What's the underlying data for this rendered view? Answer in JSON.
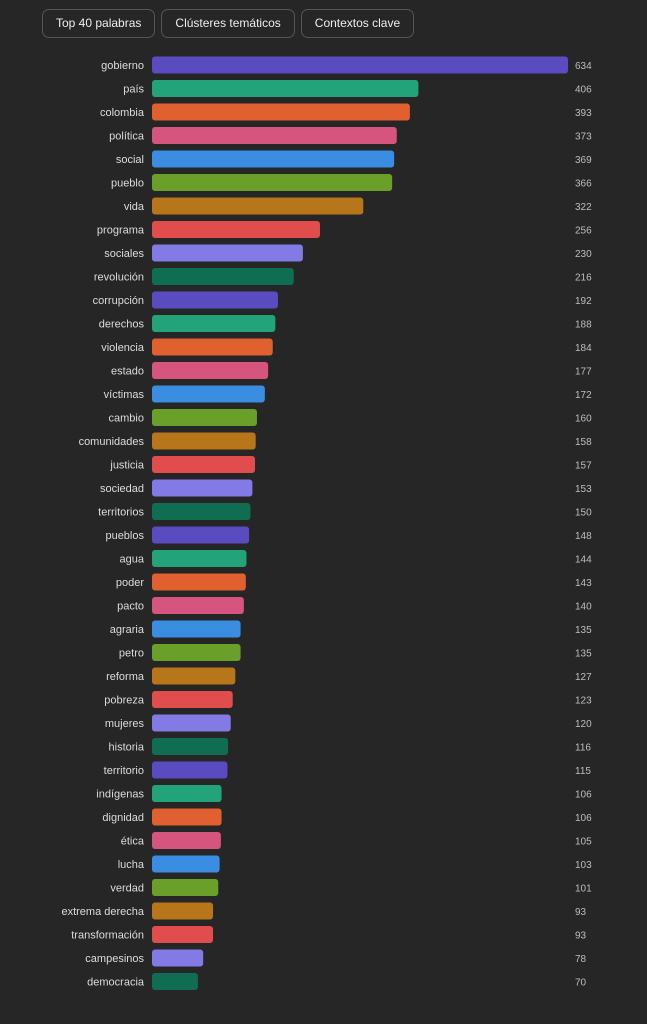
{
  "tabs": [
    "Top 40 palabras",
    "Clústeres temáticos",
    "Contextos clave"
  ],
  "chart_data": {
    "type": "bar",
    "orientation": "horizontal",
    "title": "",
    "xlabel": "",
    "ylabel": "",
    "xlim": [
      0,
      634
    ],
    "categories": [
      "gobierno",
      "país",
      "colombia",
      "política",
      "social",
      "pueblo",
      "vida",
      "programa",
      "sociales",
      "revolución",
      "corrupción",
      "derechos",
      "violencia",
      "estado",
      "víctimas",
      "cambio",
      "comunidades",
      "justicia",
      "sociedad",
      "territorios",
      "pueblos",
      "agua",
      "poder",
      "pacto",
      "agraria",
      "petro",
      "reforma",
      "pobreza",
      "mujeres",
      "historia",
      "territorio",
      "indígenas",
      "dignidad",
      "ética",
      "lucha",
      "verdad",
      "extrema derecha",
      "transformación",
      "campesinos",
      "democracia"
    ],
    "values": [
      634,
      406,
      393,
      373,
      369,
      366,
      322,
      256,
      230,
      216,
      192,
      188,
      184,
      177,
      172,
      160,
      158,
      157,
      153,
      150,
      148,
      144,
      143,
      140,
      135,
      135,
      127,
      123,
      120,
      116,
      115,
      106,
      106,
      105,
      103,
      101,
      93,
      93,
      78,
      70
    ],
    "palette": [
      "#5a4bc0",
      "#22a37a",
      "#e0602f",
      "#d6557f",
      "#3a8de0",
      "#6a9f2a",
      "#b8761a",
      "#e14c4c",
      "#837ae6",
      "#0f6e52"
    ]
  }
}
